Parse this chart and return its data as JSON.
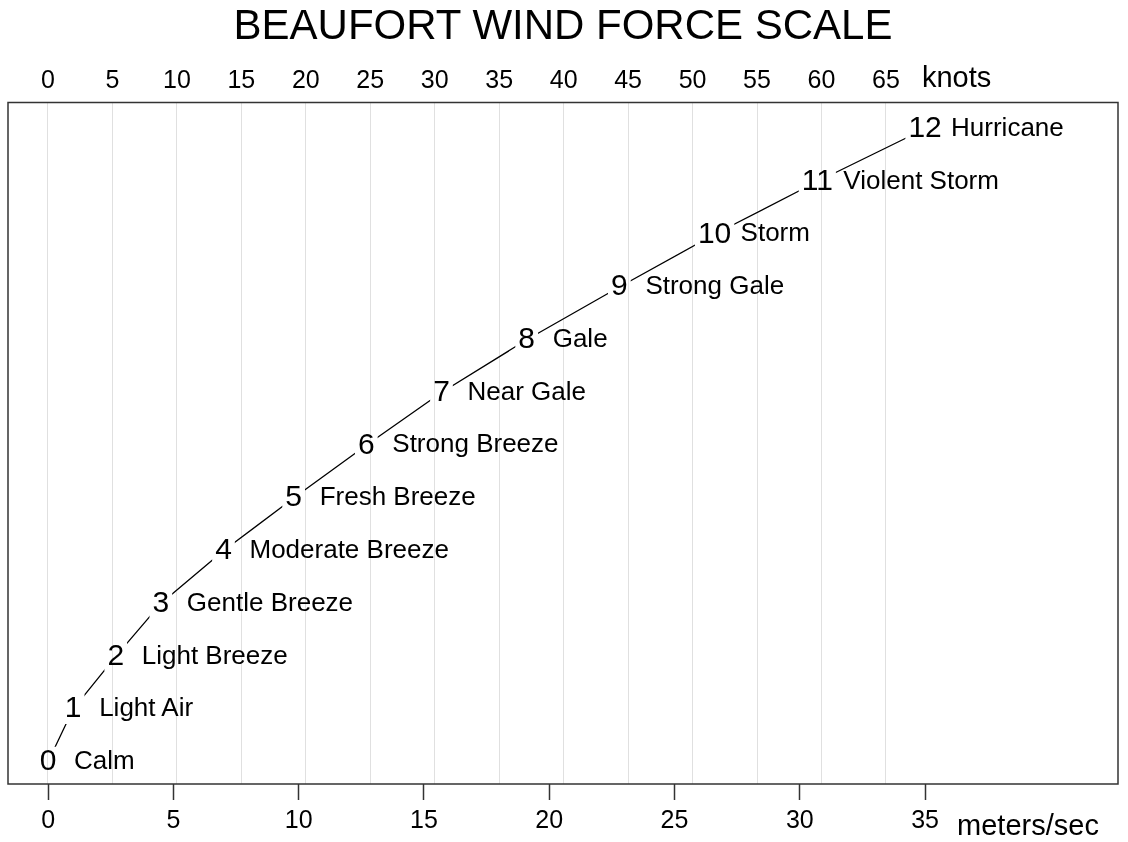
{
  "chart_data": {
    "type": "line",
    "title": "BEAUFORT WIND FORCE SCALE",
    "xlabel": "meters/sec",
    "x2label": "knots",
    "x": [
      0,
      1.0,
      2.7,
      4.5,
      7.0,
      9.8,
      12.7,
      15.7,
      19.1,
      22.8,
      26.6,
      30.7,
      35.0
    ],
    "values": [
      0,
      1,
      2,
      3,
      4,
      5,
      6,
      7,
      8,
      9,
      10,
      11,
      12
    ],
    "color": "#000000",
    "line_style": "solid",
    "data_labels": true,
    "xlim": [
      -1.6,
      42.7
    ],
    "xticks": [
      0,
      5,
      10,
      15,
      20,
      25,
      30,
      35
    ],
    "x2lim": [
      -3.1,
      83.0
    ],
    "x2ticks": [
      0,
      5,
      10,
      15,
      20,
      25,
      30,
      35,
      40,
      45,
      50,
      55,
      60,
      65
    ],
    "ylim": [
      -0.42,
      12.5
    ],
    "tick_labels": "x",
    "grid": "x",
    "legend": false,
    "annotations": [
      {
        "text": "Calm",
        "x": 0,
        "y": 0
      },
      {
        "text": "Light Air",
        "x": 1.0,
        "y": 1
      },
      {
        "text": "Light Breeze",
        "x": 2.7,
        "y": 2
      },
      {
        "text": "Gentle Breeze",
        "x": 4.5,
        "y": 3
      },
      {
        "text": "Moderate Breeze",
        "x": 7.0,
        "y": 4
      },
      {
        "text": "Fresh Breeze",
        "x": 9.8,
        "y": 5
      },
      {
        "text": "Strong Breeze",
        "x": 12.7,
        "y": 6
      },
      {
        "text": "Near Gale",
        "x": 15.7,
        "y": 7
      },
      {
        "text": "Gale",
        "x": 19.1,
        "y": 8
      },
      {
        "text": "Strong Gale",
        "x": 22.8,
        "y": 9
      },
      {
        "text": "Storm",
        "x": 26.6,
        "y": 10
      },
      {
        "text": "Violent Storm",
        "x": 30.7,
        "y": 11
      },
      {
        "text": "Hurricane",
        "x": 35.0,
        "y": 12
      }
    ]
  }
}
